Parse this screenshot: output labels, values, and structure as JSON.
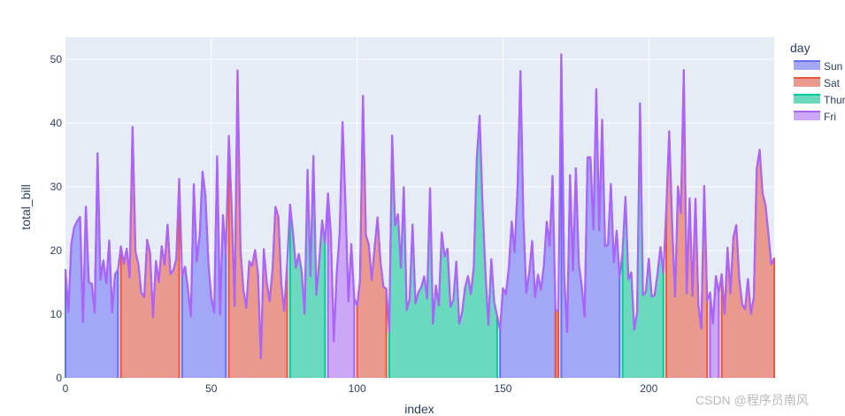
{
  "chart_data": {
    "type": "area",
    "xlabel": "index",
    "ylabel": "total_bill",
    "xlim": [
      0,
      243
    ],
    "ylim": [
      0,
      53.5
    ],
    "x_ticks": [
      0,
      50,
      100,
      150,
      200
    ],
    "y_ticks": [
      0,
      10,
      20,
      30,
      40,
      50
    ],
    "grid": true,
    "legend": {
      "title": "day",
      "placement": "right"
    },
    "values": [
      16.99,
      10.34,
      21.01,
      23.68,
      24.59,
      25.29,
      8.77,
      26.88,
      15.04,
      14.78,
      10.27,
      35.26,
      15.42,
      18.43,
      14.83,
      21.58,
      10.33,
      16.29,
      16.97,
      20.65,
      17.92,
      20.29,
      15.77,
      39.42,
      19.82,
      17.81,
      13.37,
      12.69,
      21.7,
      19.65,
      9.55,
      18.35,
      15.06,
      20.69,
      17.78,
      24.06,
      16.31,
      16.93,
      18.69,
      31.27,
      16.04,
      17.46,
      13.94,
      9.68,
      30.4,
      18.29,
      22.23,
      32.4,
      28.55,
      18.04,
      12.54,
      10.29,
      34.81,
      9.94,
      25.56,
      19.49,
      38.01,
      26.41,
      11.24,
      48.27,
      20.29,
      13.81,
      11.02,
      18.29,
      17.59,
      20.08,
      16.45,
      3.07,
      20.23,
      15.01,
      12.02,
      17.07,
      26.86,
      25.28,
      14.73,
      10.51,
      17.92,
      27.2,
      22.76,
      17.29,
      19.44,
      16.66,
      10.07,
      32.68,
      15.98,
      34.83,
      13.03,
      18.28,
      24.71,
      21.16,
      28.97,
      22.49,
      5.75,
      16.32,
      22.75,
      40.17,
      27.28,
      12.03,
      21.01,
      12.46,
      11.35,
      15.38,
      44.3,
      22.42,
      20.92,
      15.36,
      20.49,
      25.21,
      18.24,
      14.31,
      14.0,
      7.25,
      38.07,
      23.95,
      25.71,
      17.31,
      29.93,
      10.65,
      12.43,
      24.08,
      11.69,
      13.42,
      14.26,
      15.95,
      12.48,
      29.8,
      8.52,
      14.52,
      11.38,
      22.82,
      19.08,
      20.27,
      11.17,
      12.26,
      18.26,
      8.51,
      10.33,
      14.15,
      16.0,
      13.16,
      17.47,
      34.3,
      41.19,
      27.05,
      16.43,
      8.35,
      18.64,
      11.87,
      9.78,
      7.51,
      14.07,
      13.13,
      17.26,
      24.55,
      19.77,
      29.85,
      48.17,
      25.0,
      13.39,
      16.49,
      21.5,
      12.66,
      16.21,
      13.81,
      17.51,
      24.52,
      20.76,
      31.71,
      10.59,
      10.63,
      50.81,
      15.81,
      7.25,
      31.85,
      16.82,
      32.9,
      17.89,
      14.48,
      9.6,
      34.63,
      34.65,
      23.33,
      45.35,
      23.17,
      40.55,
      20.69,
      20.9,
      30.46,
      18.15,
      23.1,
      15.69,
      19.81,
      28.44,
      15.48,
      16.58,
      7.56,
      10.34,
      43.11,
      13.0,
      13.51,
      18.71,
      12.74,
      13.0,
      16.4,
      20.53,
      16.47,
      26.59,
      38.73,
      24.27,
      12.76,
      30.06,
      25.89,
      48.33,
      13.27,
      28.17,
      12.9,
      28.15,
      11.59,
      7.74,
      30.14,
      12.16,
      13.42,
      8.58,
      15.98,
      13.42,
      16.27,
      10.09,
      20.45,
      13.28,
      22.12,
      24.01,
      15.69,
      11.61,
      10.77,
      15.53,
      10.07,
      12.6,
      32.83,
      35.83,
      29.03,
      27.18,
      22.67,
      17.82,
      18.78
    ],
    "series": [
      {
        "name": "Sun",
        "color": "#636efa",
        "fill": "#a3a8f6",
        "segments": [
          [
            0,
            18
          ],
          [
            40,
            55
          ],
          [
            149,
            168
          ],
          [
            170,
            190
          ]
        ]
      },
      {
        "name": "Sat",
        "color": "#ef553b",
        "fill": "#e9998e",
        "segments": [
          [
            19,
            39
          ],
          [
            56,
            76
          ],
          [
            100,
            110
          ],
          [
            168,
            169
          ],
          [
            206,
            220
          ],
          [
            225,
            243
          ]
        ]
      },
      {
        "name": "Thur",
        "color": "#00cc96",
        "fill": "#6ad9bd",
        "segments": [
          [
            77,
            89
          ],
          [
            111,
            148
          ],
          [
            191,
            205
          ]
        ]
      },
      {
        "name": "Fri",
        "color": "#ab63fa",
        "fill": "#cba7f6",
        "segments": [
          [
            90,
            99
          ],
          [
            221,
            224
          ]
        ]
      }
    ]
  },
  "watermark": "CSDN @程序员南风"
}
